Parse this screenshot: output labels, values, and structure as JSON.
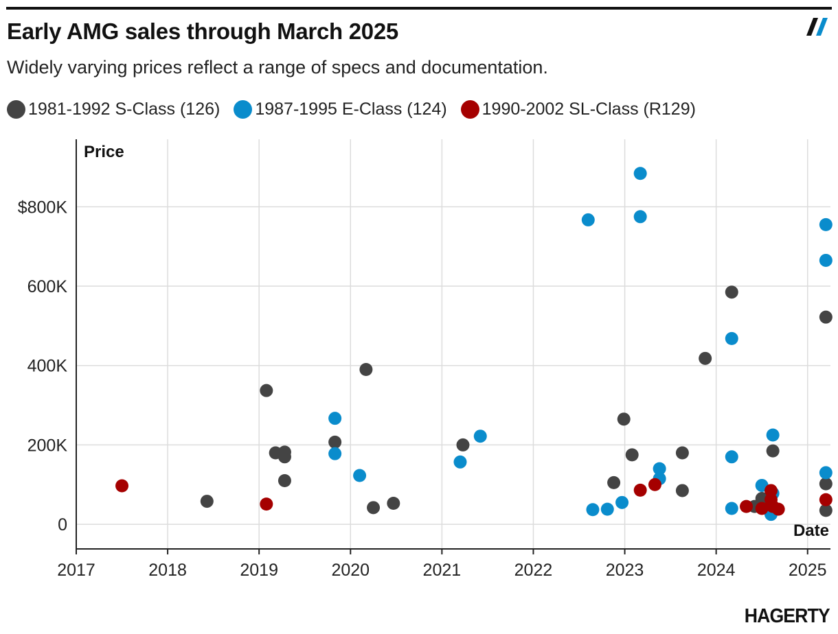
{
  "header": {
    "title": "Early AMG sales through March 2025",
    "subtitle": "Widely varying prices reflect a range of specs and documentation."
  },
  "brand": {
    "logo_text": "HAGERTY"
  },
  "chart_data": {
    "type": "scatter",
    "title": "Early AMG sales through March 2025",
    "subtitle": "Widely varying prices reflect a range of specs and documentation.",
    "xlabel": "Date",
    "ylabel": "Price",
    "xlim": [
      2017,
      2025.25
    ],
    "ylim": [
      -62000,
      970000
    ],
    "x_ticks": [
      2017,
      2018,
      2019,
      2020,
      2021,
      2022,
      2023,
      2024,
      2025
    ],
    "x_tick_labels": [
      "2017",
      "2018",
      "2019",
      "2020",
      "2021",
      "2022",
      "2023",
      "2024",
      "2025"
    ],
    "y_ticks": [
      0,
      200000,
      400000,
      600000,
      800000
    ],
    "y_tick_labels": [
      "0",
      "200K",
      "400K",
      "600K",
      "$800K"
    ],
    "grid": true,
    "legend_position": "top",
    "series": [
      {
        "name": "1981-1992 S-Class (126)",
        "color": "#444444",
        "points": [
          [
            2018.43,
            58000
          ],
          [
            2019.08,
            337000
          ],
          [
            2019.18,
            180000
          ],
          [
            2019.28,
            182000
          ],
          [
            2019.28,
            170000
          ],
          [
            2019.28,
            110000
          ],
          [
            2019.83,
            207000
          ],
          [
            2020.17,
            390000
          ],
          [
            2020.25,
            42000
          ],
          [
            2020.47,
            53000
          ],
          [
            2021.23,
            200000
          ],
          [
            2022.88,
            105000
          ],
          [
            2022.99,
            265000
          ],
          [
            2023.08,
            175000
          ],
          [
            2023.63,
            180000
          ],
          [
            2023.63,
            85000
          ],
          [
            2023.88,
            418000
          ],
          [
            2024.17,
            585000
          ],
          [
            2024.42,
            45000
          ],
          [
            2024.5,
            65000
          ],
          [
            2024.62,
            185000
          ],
          [
            2025.2,
            522000
          ],
          [
            2025.2,
            102000
          ],
          [
            2025.2,
            35000
          ]
        ]
      },
      {
        "name": "1987-1995 E-Class (124)",
        "color": "#0a8ccc",
        "points": [
          [
            2019.83,
            267000
          ],
          [
            2019.83,
            178000
          ],
          [
            2020.1,
            123000
          ],
          [
            2021.2,
            157000
          ],
          [
            2021.42,
            222000
          ],
          [
            2022.6,
            767000
          ],
          [
            2022.65,
            37000
          ],
          [
            2022.81,
            38000
          ],
          [
            2022.97,
            55000
          ],
          [
            2023.17,
            884000
          ],
          [
            2023.17,
            775000
          ],
          [
            2023.38,
            140000
          ],
          [
            2023.38,
            115000
          ],
          [
            2024.17,
            468000
          ],
          [
            2024.17,
            170000
          ],
          [
            2024.17,
            40000
          ],
          [
            2024.5,
            98000
          ],
          [
            2024.62,
            225000
          ],
          [
            2024.62,
            78000
          ],
          [
            2024.6,
            25000
          ],
          [
            2025.2,
            755000
          ],
          [
            2025.2,
            665000
          ],
          [
            2025.2,
            130000
          ]
        ]
      },
      {
        "name": "1990-2002 SL-Class (R129)",
        "color": "#a50000",
        "points": [
          [
            2017.5,
            97000
          ],
          [
            2019.08,
            51000
          ],
          [
            2023.17,
            86000
          ],
          [
            2023.33,
            100000
          ],
          [
            2024.33,
            45000
          ],
          [
            2024.5,
            40000
          ],
          [
            2024.6,
            85000
          ],
          [
            2024.6,
            62000
          ],
          [
            2024.62,
            45000
          ],
          [
            2024.68,
            38000
          ],
          [
            2025.2,
            62000
          ]
        ]
      }
    ]
  }
}
